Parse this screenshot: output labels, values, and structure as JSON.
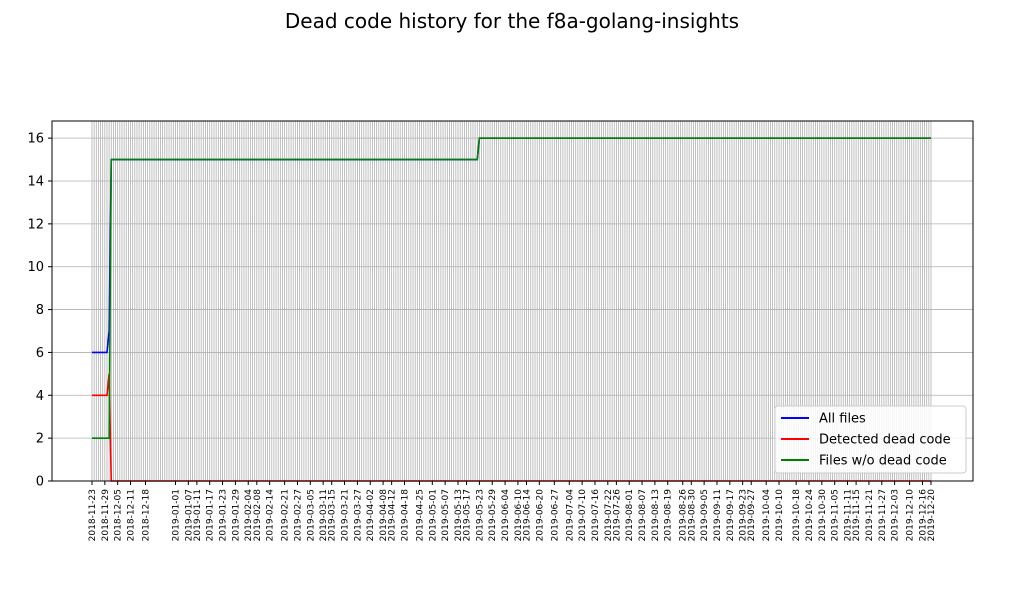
{
  "chart_data": {
    "type": "line",
    "title": "Dead code history for the f8a-golang-insights",
    "xlabel": "",
    "ylabel": "",
    "ylim": [
      0,
      16.8
    ],
    "yticks": [
      0,
      2,
      4,
      6,
      8,
      10,
      12,
      14,
      16
    ],
    "grid": true,
    "legend_position": "bottom-right",
    "x_start": "2018-11-23",
    "x_end": "2019-12-20",
    "x_tick_labels": [
      "2018-11-23",
      "2018-11-29",
      "2018-12-05",
      "2018-12-11",
      "2018-12-18",
      "2019-01-01",
      "2019-01-07",
      "2019-01-11",
      "2019-01-17",
      "2019-01-23",
      "2019-01-29",
      "2019-02-04",
      "2019-02-08",
      "2019-02-14",
      "2019-02-21",
      "2019-02-27",
      "2019-03-05",
      "2019-03-11",
      "2019-03-15",
      "2019-03-21",
      "2019-03-27",
      "2019-04-02",
      "2019-04-08",
      "2019-04-12",
      "2019-04-18",
      "2019-04-25",
      "2019-05-01",
      "2019-05-07",
      "2019-05-13",
      "2019-05-17",
      "2019-05-23",
      "2019-05-29",
      "2019-06-04",
      "2019-06-10",
      "2019-06-14",
      "2019-06-20",
      "2019-06-27",
      "2019-07-04",
      "2019-07-10",
      "2019-07-16",
      "2019-07-22",
      "2019-07-26",
      "2019-08-01",
      "2019-08-07",
      "2019-08-13",
      "2019-08-19",
      "2019-08-26",
      "2019-08-30",
      "2019-09-05",
      "2019-09-11",
      "2019-09-17",
      "2019-09-23",
      "2019-09-27",
      "2019-10-04",
      "2019-10-10",
      "2019-10-18",
      "2019-10-24",
      "2019-10-30",
      "2019-11-05",
      "2019-11-11",
      "2019-11-15",
      "2019-11-21",
      "2019-11-27",
      "2019-12-03",
      "2019-12-10",
      "2019-12-16",
      "2019-12-20"
    ],
    "series": [
      {
        "name": "All files",
        "color": "#0000ff",
        "points": [
          [
            "2018-11-23",
            6
          ],
          [
            "2018-11-30",
            6
          ],
          [
            "2018-12-01",
            7
          ],
          [
            "2018-12-02",
            15
          ],
          [
            "2019-05-22",
            15
          ],
          [
            "2019-05-23",
            16
          ],
          [
            "2019-12-20",
            16
          ]
        ]
      },
      {
        "name": "Detected dead code",
        "color": "#ff0000",
        "points": [
          [
            "2018-11-23",
            4
          ],
          [
            "2018-11-30",
            4
          ],
          [
            "2018-12-01",
            5
          ],
          [
            "2018-12-02",
            0
          ],
          [
            "2019-12-20",
            0
          ]
        ]
      },
      {
        "name": "Files w/o dead code",
        "color": "#008000",
        "points": [
          [
            "2018-11-23",
            2
          ],
          [
            "2018-11-30",
            2
          ],
          [
            "2018-12-01",
            2
          ],
          [
            "2018-12-02",
            15
          ],
          [
            "2019-05-22",
            15
          ],
          [
            "2019-05-23",
            16
          ],
          [
            "2019-12-20",
            16
          ]
        ]
      }
    ]
  }
}
